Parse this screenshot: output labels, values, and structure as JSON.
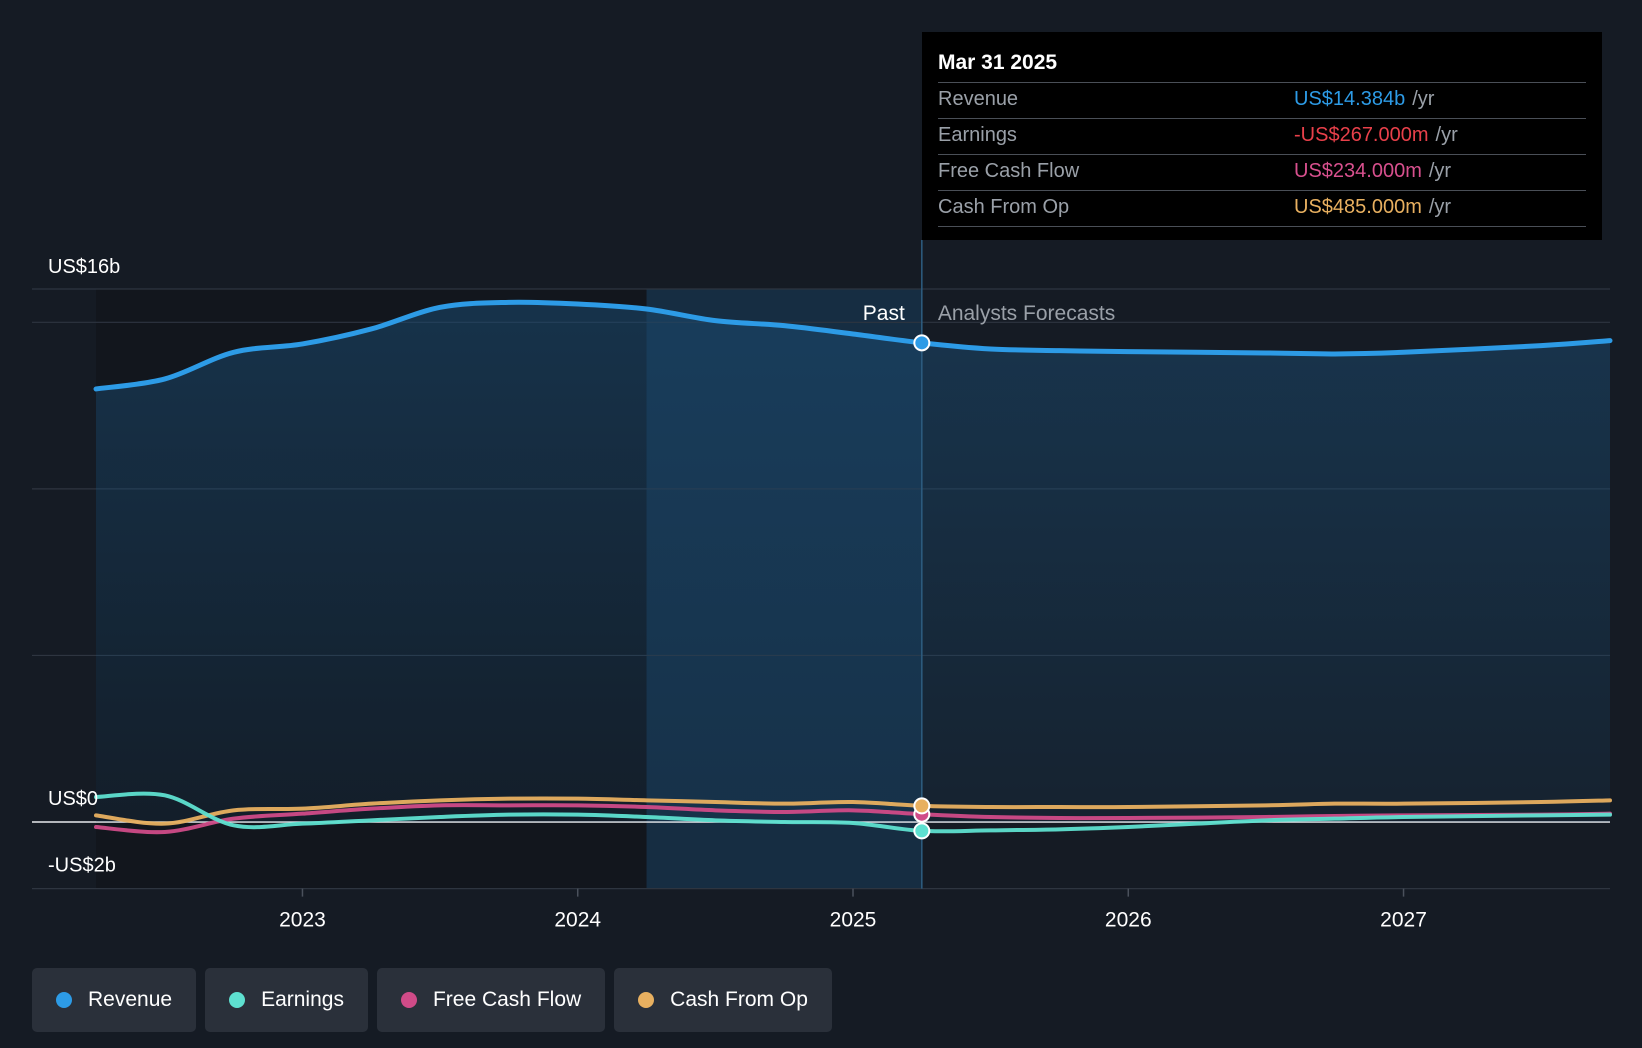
{
  "tooltip": {
    "date": "Mar 31 2025",
    "rows": [
      {
        "label": "Revenue",
        "value": "US$14.384b",
        "unit": "/yr",
        "color": "#2d9be6"
      },
      {
        "label": "Earnings",
        "value": "-US$267.000m",
        "unit": "/yr",
        "color": "#e8404a"
      },
      {
        "label": "Free Cash Flow",
        "value": "US$234.000m",
        "unit": "/yr",
        "color": "#d8508e"
      },
      {
        "label": "Cash From Op",
        "value": "US$485.000m",
        "unit": "/yr",
        "color": "#e8b060"
      }
    ]
  },
  "legend": [
    {
      "label": "Revenue",
      "color": "#2d9be6"
    },
    {
      "label": "Earnings",
      "color": "#5ee0d0"
    },
    {
      "label": "Free Cash Flow",
      "color": "#d04b88"
    },
    {
      "label": "Cash From Op",
      "color": "#e8b060"
    }
  ],
  "chart_data": {
    "type": "line",
    "y_unit": "US$ billions",
    "ylim": [
      -2,
      16
    ],
    "x_range": [
      2022.25,
      2027.75
    ],
    "xticks": [
      "2023",
      "2024",
      "2025",
      "2026",
      "2027"
    ],
    "xtick_values": [
      2023,
      2024,
      2025,
      2026,
      2027
    ],
    "y_labels": {
      "top": "US$16b",
      "zero": "US$0",
      "bottom": "-US$2b"
    },
    "y_label_values": {
      "top": 16,
      "zero": 0,
      "bottom": -2
    },
    "y_gridlines": [
      16,
      15,
      10,
      5,
      0,
      -2
    ],
    "past_label": "Past",
    "forecast_label": "Analysts Forecasts",
    "divider_x": 2025.25,
    "shade_start_x": 2024.25,
    "series": [
      {
        "name": "Revenue",
        "color": "#2d9be6",
        "values": [
          [
            2022.25,
            13.0
          ],
          [
            2022.5,
            13.3
          ],
          [
            2022.75,
            14.1
          ],
          [
            2023.0,
            14.35
          ],
          [
            2023.25,
            14.8
          ],
          [
            2023.5,
            15.45
          ],
          [
            2023.75,
            15.6
          ],
          [
            2024.0,
            15.55
          ],
          [
            2024.25,
            15.4
          ],
          [
            2024.5,
            15.05
          ],
          [
            2024.75,
            14.9
          ],
          [
            2025.0,
            14.65
          ],
          [
            2025.25,
            14.384
          ],
          [
            2025.5,
            14.2
          ],
          [
            2025.75,
            14.15
          ],
          [
            2026.0,
            14.12
          ],
          [
            2026.5,
            14.08
          ],
          [
            2026.75,
            14.05
          ],
          [
            2027.0,
            14.1
          ],
          [
            2027.5,
            14.3
          ],
          [
            2027.75,
            14.45
          ]
        ]
      },
      {
        "name": "Earnings",
        "color": "#5ee0d0",
        "values": [
          [
            2022.25,
            0.75
          ],
          [
            2022.5,
            0.8
          ],
          [
            2022.75,
            -0.1
          ],
          [
            2023.0,
            -0.05
          ],
          [
            2023.25,
            0.05
          ],
          [
            2023.5,
            0.15
          ],
          [
            2023.75,
            0.22
          ],
          [
            2024.0,
            0.22
          ],
          [
            2024.25,
            0.15
          ],
          [
            2024.5,
            0.05
          ],
          [
            2024.75,
            0.0
          ],
          [
            2025.0,
            -0.03
          ],
          [
            2025.25,
            -0.267
          ],
          [
            2025.5,
            -0.25
          ],
          [
            2025.75,
            -0.22
          ],
          [
            2026.0,
            -0.15
          ],
          [
            2026.25,
            -0.05
          ],
          [
            2026.5,
            0.05
          ],
          [
            2026.75,
            0.1
          ],
          [
            2027.0,
            0.15
          ],
          [
            2027.5,
            0.2
          ],
          [
            2027.75,
            0.22
          ]
        ]
      },
      {
        "name": "Free Cash Flow",
        "color": "#d04b88",
        "values": [
          [
            2022.25,
            -0.15
          ],
          [
            2022.5,
            -0.3
          ],
          [
            2022.75,
            0.1
          ],
          [
            2023.0,
            0.25
          ],
          [
            2023.25,
            0.4
          ],
          [
            2023.5,
            0.5
          ],
          [
            2023.75,
            0.5
          ],
          [
            2024.0,
            0.5
          ],
          [
            2024.25,
            0.45
          ],
          [
            2024.5,
            0.35
          ],
          [
            2024.75,
            0.3
          ],
          [
            2025.0,
            0.35
          ],
          [
            2025.25,
            0.234
          ],
          [
            2025.5,
            0.15
          ],
          [
            2025.75,
            0.12
          ],
          [
            2026.0,
            0.12
          ],
          [
            2026.5,
            0.15
          ],
          [
            2026.75,
            0.18
          ],
          [
            2027.0,
            0.2
          ],
          [
            2027.5,
            0.22
          ],
          [
            2027.75,
            0.25
          ]
        ]
      },
      {
        "name": "Cash From Op",
        "color": "#e8b060",
        "values": [
          [
            2022.25,
            0.2
          ],
          [
            2022.5,
            -0.05
          ],
          [
            2022.75,
            0.35
          ],
          [
            2023.0,
            0.4
          ],
          [
            2023.25,
            0.55
          ],
          [
            2023.5,
            0.65
          ],
          [
            2023.75,
            0.7
          ],
          [
            2024.0,
            0.7
          ],
          [
            2024.25,
            0.65
          ],
          [
            2024.5,
            0.6
          ],
          [
            2024.75,
            0.55
          ],
          [
            2025.0,
            0.6
          ],
          [
            2025.25,
            0.485
          ],
          [
            2025.5,
            0.45
          ],
          [
            2025.75,
            0.45
          ],
          [
            2026.0,
            0.45
          ],
          [
            2026.5,
            0.5
          ],
          [
            2026.75,
            0.55
          ],
          [
            2027.0,
            0.55
          ],
          [
            2027.5,
            0.6
          ],
          [
            2027.75,
            0.65
          ]
        ]
      }
    ]
  }
}
